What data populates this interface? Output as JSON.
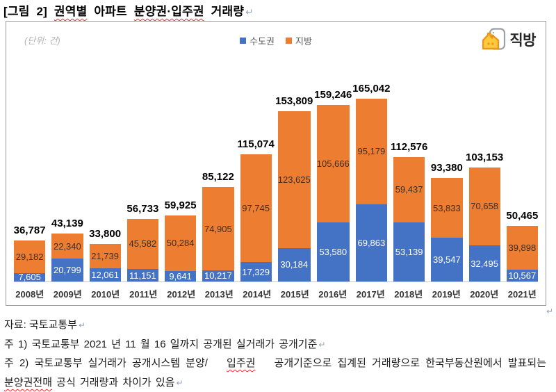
{
  "eol_mark": "↵",
  "title": {
    "segments": [
      {
        "text": "[그림 2] ",
        "spell": false
      },
      {
        "text": "권역별",
        "spell": true
      },
      {
        "text": " 아파트 ",
        "spell": false
      },
      {
        "text": "분양권·입주권",
        "spell": true
      },
      {
        "text": " 거래량",
        "spell": false
      }
    ]
  },
  "logo": {
    "text": "직방",
    "house_icon_color": "#E8961E",
    "house_fill": "#FFC93C",
    "frame_color": "#9aa0a6"
  },
  "chart_data": {
    "type": "bar",
    "stacked": true,
    "title": "권역별 아파트 분양권·입주권 거래량",
    "unit_label": "(단위: 건)",
    "categories": [
      "2008년",
      "2009년",
      "2010년",
      "2011년",
      "2012년",
      "2013년",
      "2014년",
      "2015년",
      "2016년",
      "2017년",
      "2018년",
      "2019년",
      "2020년",
      "2021년"
    ],
    "series": [
      {
        "key": "sudogwon",
        "name": "수도권",
        "color": "#4472C4",
        "label_color": "#FFFFFF",
        "values": [
          7605,
          20799,
          12061,
          11151,
          9641,
          10217,
          17329,
          30184,
          53580,
          69863,
          53139,
          39547,
          32495,
          10567
        ]
      },
      {
        "key": "jibang",
        "name": "지방",
        "color": "#ED7D31",
        "label_color": "#3F2D1E",
        "values": [
          29182,
          22340,
          21739,
          45582,
          50284,
          74905,
          97745,
          123625,
          105666,
          95179,
          59437,
          53833,
          70658,
          39898
        ]
      }
    ],
    "totals": [
      36787,
      43139,
      33800,
      56733,
      59925,
      85122,
      115074,
      153809,
      159246,
      165042,
      112576,
      93380,
      103153,
      50465
    ],
    "ylim": [
      0,
      165042
    ],
    "legend_position": "top-center",
    "grid": false,
    "data_labels": true
  },
  "footer": {
    "source": "자료: 국토교통부",
    "note1": "주 1) 국토교통부 2021 년 11 월 16 일까지 공개된 실거래가 공개기준",
    "note2_line1_segments": [
      {
        "text": "주 2) 국토교통부 실거래가 공개시스템 분양/",
        "spell": false
      },
      {
        "text": "입주권",
        "spell": true
      },
      {
        "text": " 공개기준으로 집계된 거래량으로 한국부동산원에서 발표되는",
        "spell": false
      }
    ],
    "note2_line2_segments": [
      {
        "text": "분양권전매",
        "spell": true
      },
      {
        "text": " 공식 거래량과 차이가 있음",
        "spell": false
      }
    ]
  }
}
